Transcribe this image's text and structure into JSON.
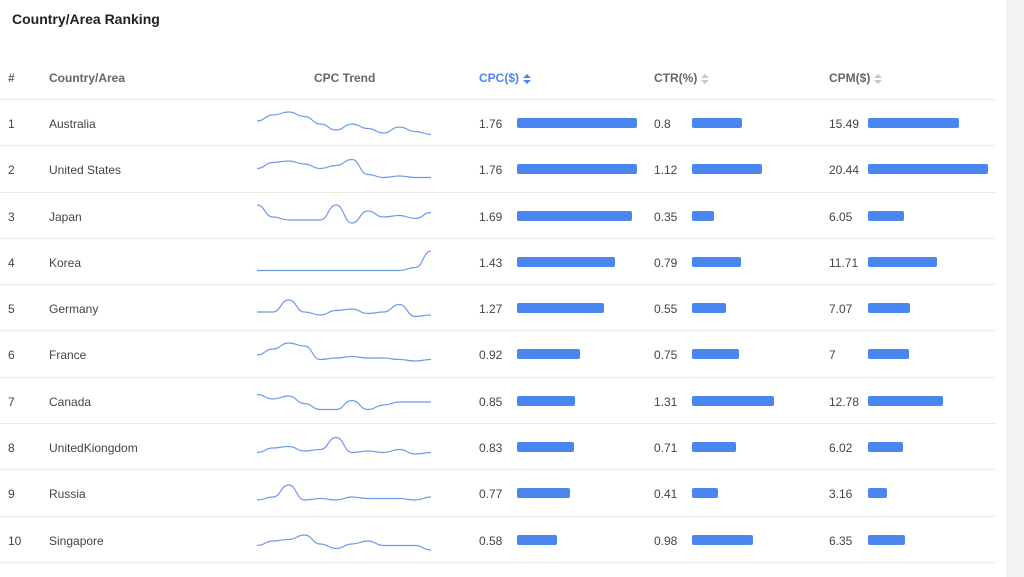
{
  "title": "Country/Area Ranking",
  "headers": {
    "rank": "#",
    "country": "Country/Area",
    "trend": "CPC Trend",
    "cpc": "CPC($)",
    "ctr": "CTR(%)",
    "cpm": "CPM($)"
  },
  "accent_color": "#4a86f0",
  "sorted_by": "CPC($)",
  "rows": [
    {
      "rank": "1",
      "country": "Australia",
      "cpc": "1.76",
      "ctr": "0.8",
      "cpm": "15.49",
      "trend": [
        10,
        14,
        16,
        13,
        8,
        4,
        8,
        5,
        2,
        6,
        3,
        1
      ]
    },
    {
      "rank": "2",
      "country": "United States",
      "cpc": "1.76",
      "ctr": "1.12",
      "cpm": "20.44",
      "trend": [
        9,
        13,
        14,
        12,
        9,
        11,
        15,
        5,
        3,
        4,
        3,
        3
      ]
    },
    {
      "rank": "3",
      "country": "Japan",
      "cpc": "1.69",
      "ctr": "0.35",
      "cpm": "6.05",
      "trend": [
        16,
        8,
        6,
        6,
        6,
        16,
        4,
        12,
        8,
        9,
        7,
        11
      ]
    },
    {
      "rank": "4",
      "country": "Korea",
      "cpc": "1.43",
      "ctr": "0.79",
      "cpm": "11.71",
      "trend": [
        3,
        3,
        3,
        3,
        3,
        3,
        3,
        3,
        3,
        3,
        5,
        16
      ]
    },
    {
      "rank": "5",
      "country": "Germany",
      "cpc": "1.27",
      "ctr": "0.55",
      "cpm": "7.07",
      "trend": [
        6,
        6,
        14,
        6,
        4,
        7,
        8,
        5,
        6,
        11,
        3,
        4
      ]
    },
    {
      "rank": "6",
      "country": "France",
      "cpc": "0.92",
      "ctr": "0.75",
      "cpm": "7",
      "trend": [
        8,
        12,
        16,
        14,
        5,
        6,
        7,
        6,
        6,
        5,
        4,
        5
      ]
    },
    {
      "rank": "7",
      "country": "Canada",
      "cpc": "0.85",
      "ctr": "1.31",
      "cpm": "12.78",
      "trend": [
        13,
        10,
        12,
        7,
        3,
        3,
        9,
        3,
        6,
        8,
        8,
        8
      ]
    },
    {
      "rank": "8",
      "country": "UnitedKiongdom",
      "cpc": "0.83",
      "ctr": "0.71",
      "cpm": "6.02",
      "trend": [
        5,
        8,
        9,
        6,
        7,
        15,
        5,
        6,
        5,
        7,
        4,
        5
      ]
    },
    {
      "rank": "9",
      "country": "Russia",
      "cpc": "0.77",
      "ctr": "0.41",
      "cpm": "3.16",
      "trend": [
        4,
        6,
        14,
        4,
        5,
        4,
        6,
        5,
        5,
        5,
        4,
        6
      ]
    },
    {
      "rank": "10",
      "country": "Singapore",
      "cpc": "0.58",
      "ctr": "0.98",
      "cpm": "6.35",
      "trend": [
        5,
        8,
        9,
        12,
        6,
        3,
        6,
        8,
        5,
        5,
        5,
        2
      ]
    }
  ]
}
